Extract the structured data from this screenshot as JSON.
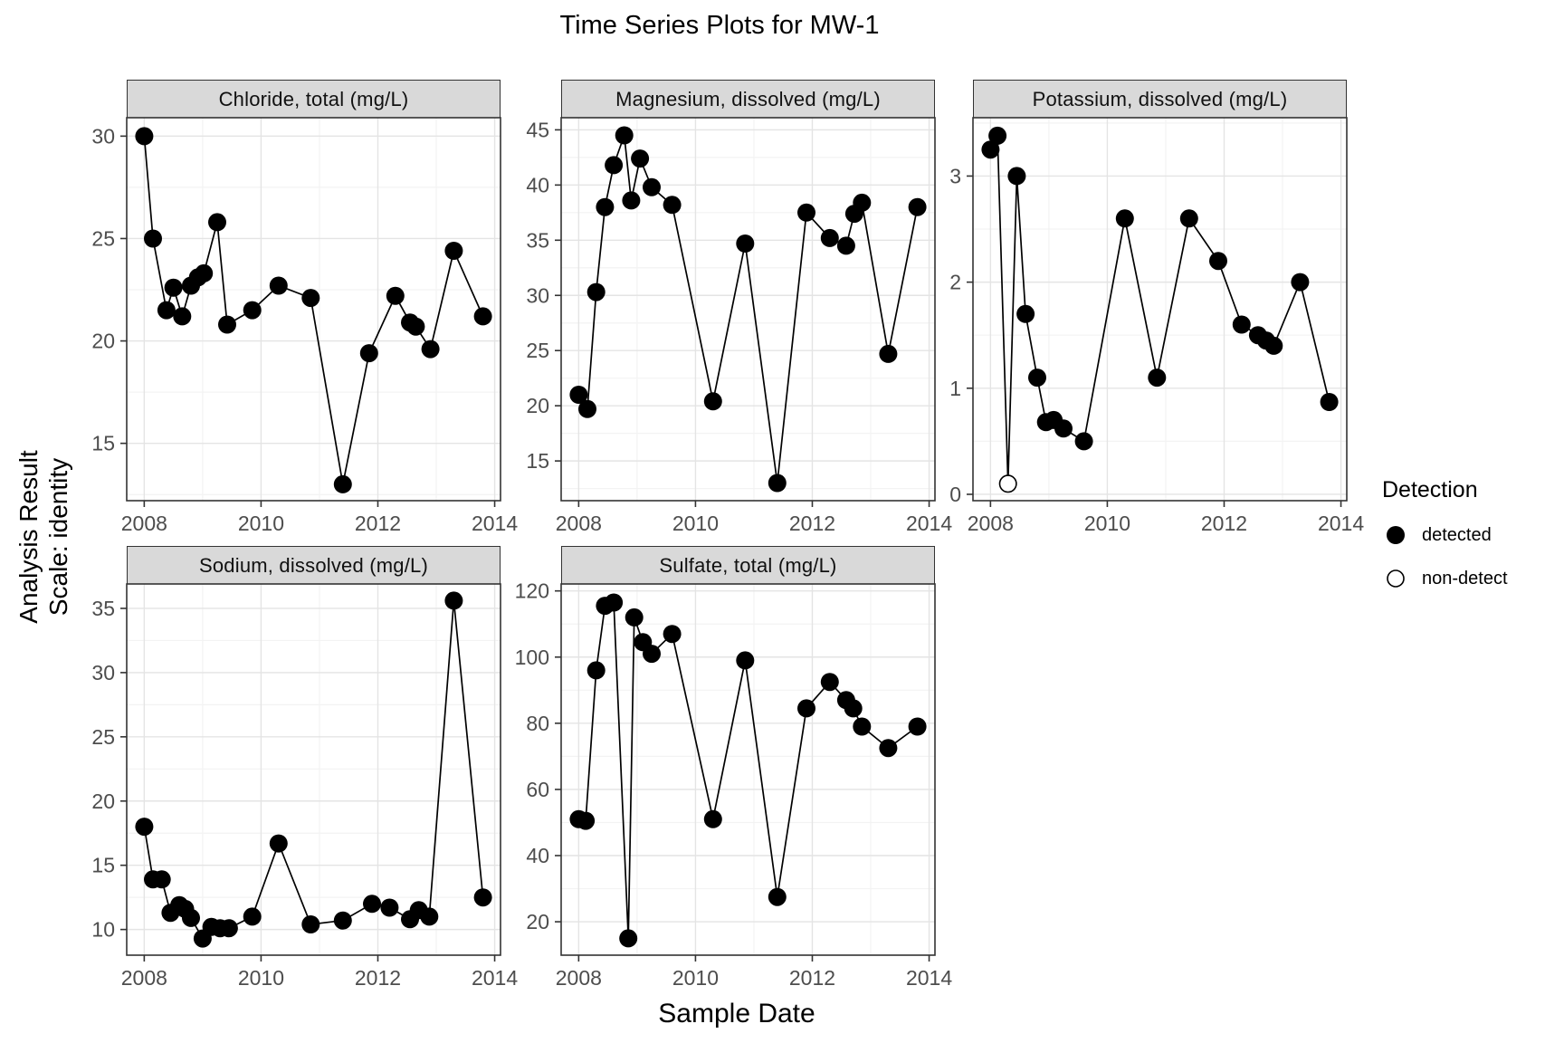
{
  "title": "Time Series Plots for MW-1",
  "y_axis": {
    "line1": "Analysis Result",
    "line2": "Scale: identity"
  },
  "x_axis": {
    "title": "Sample Date"
  },
  "legend": {
    "title": "Detection",
    "items": [
      {
        "label": "detected",
        "symbol": "filled-circle"
      },
      {
        "label": "non-detect",
        "symbol": "open-circle"
      }
    ]
  },
  "colors": {
    "point": "#000000",
    "line": "#000000",
    "strip_bg": "#D9D9D9",
    "panel_bg": "#FFFFFF",
    "panel_border": "#333333",
    "grid_major": "#E4E4E4",
    "grid_minor": "#F3F3F3",
    "tick_label": "#4D4D4D"
  },
  "chart_data": [
    {
      "type": "line",
      "title": "Chloride, total (mg/L)",
      "x": [
        2008.0,
        2008.15,
        2008.38,
        2008.5,
        2008.65,
        2008.8,
        2008.92,
        2009.02,
        2009.25,
        2009.42,
        2009.85,
        2010.3,
        2010.85,
        2011.4,
        2011.85,
        2012.3,
        2012.55,
        2012.65,
        2012.9,
        2013.3,
        2013.8
      ],
      "y": [
        30.0,
        25.0,
        21.5,
        22.6,
        21.2,
        22.7,
        23.1,
        23.3,
        25.8,
        20.8,
        21.5,
        22.7,
        22.1,
        13.0,
        19.4,
        22.2,
        20.9,
        20.7,
        19.6,
        24.4,
        21.2
      ],
      "detected": [
        true,
        true,
        true,
        true,
        true,
        true,
        true,
        true,
        true,
        true,
        true,
        true,
        true,
        true,
        true,
        true,
        true,
        true,
        true,
        true,
        true
      ],
      "xlim": [
        2007.7,
        2014.1
      ],
      "ylim": [
        12.2,
        30.9
      ],
      "x_ticks": [
        2008,
        2010,
        2012,
        2014
      ],
      "y_ticks": [
        15,
        20,
        25,
        30
      ]
    },
    {
      "type": "line",
      "title": "Magnesium, dissolved (mg/L)",
      "x": [
        2008.0,
        2008.15,
        2008.3,
        2008.45,
        2008.6,
        2008.78,
        2008.9,
        2009.05,
        2009.25,
        2009.6,
        2010.3,
        2010.85,
        2011.4,
        2011.9,
        2012.3,
        2012.58,
        2012.72,
        2012.85,
        2013.3,
        2013.8
      ],
      "y": [
        21.0,
        19.7,
        30.3,
        38.0,
        41.8,
        44.5,
        38.6,
        42.4,
        39.8,
        38.2,
        20.4,
        34.7,
        13.0,
        37.5,
        35.2,
        34.5,
        37.4,
        38.4,
        24.7,
        38.0
      ],
      "detected": [
        true,
        true,
        true,
        true,
        true,
        true,
        true,
        true,
        true,
        true,
        true,
        true,
        true,
        true,
        true,
        true,
        true,
        true,
        true,
        true
      ],
      "xlim": [
        2007.7,
        2014.1
      ],
      "ylim": [
        11.4,
        46.1
      ],
      "x_ticks": [
        2008,
        2010,
        2012,
        2014
      ],
      "y_ticks": [
        15,
        20,
        25,
        30,
        35,
        40,
        45
      ]
    },
    {
      "type": "line",
      "title": "Potassium, dissolved (mg/L)",
      "x": [
        2008.0,
        2008.12,
        2008.3,
        2008.45,
        2008.6,
        2008.8,
        2008.95,
        2009.08,
        2009.25,
        2009.6,
        2010.3,
        2010.85,
        2011.4,
        2011.9,
        2012.3,
        2012.58,
        2012.72,
        2012.85,
        2013.3,
        2013.8
      ],
      "y": [
        3.25,
        3.38,
        0.1,
        3.0,
        1.7,
        1.1,
        0.68,
        0.7,
        0.62,
        0.5,
        2.6,
        1.1,
        2.6,
        2.2,
        1.6,
        1.5,
        1.45,
        1.4,
        2.0,
        0.87
      ],
      "detected": [
        true,
        true,
        false,
        true,
        true,
        true,
        true,
        true,
        true,
        true,
        true,
        true,
        true,
        true,
        true,
        true,
        true,
        true,
        true,
        true
      ],
      "xlim": [
        2007.7,
        2014.1
      ],
      "ylim": [
        -0.06,
        3.55
      ],
      "x_ticks": [
        2008,
        2010,
        2012,
        2014
      ],
      "y_ticks": [
        0,
        1,
        2,
        3
      ]
    },
    {
      "type": "line",
      "title": "Sodium, dissolved (mg/L)",
      "x": [
        2008.0,
        2008.15,
        2008.3,
        2008.45,
        2008.6,
        2008.7,
        2008.8,
        2009.0,
        2009.15,
        2009.3,
        2009.45,
        2009.85,
        2010.3,
        2010.85,
        2011.4,
        2011.9,
        2012.2,
        2012.55,
        2012.7,
        2012.88,
        2013.3,
        2013.8
      ],
      "y": [
        18.0,
        13.9,
        13.9,
        11.3,
        11.9,
        11.6,
        10.9,
        9.3,
        10.2,
        10.1,
        10.1,
        11.0,
        16.7,
        10.4,
        10.7,
        12.0,
        11.7,
        10.8,
        11.5,
        11.0,
        35.6,
        12.5
      ],
      "detected": [
        true,
        true,
        true,
        true,
        true,
        true,
        true,
        true,
        true,
        true,
        true,
        true,
        true,
        true,
        true,
        true,
        true,
        true,
        true,
        true,
        true,
        true
      ],
      "xlim": [
        2007.7,
        2014.1
      ],
      "ylim": [
        8.0,
        36.9
      ],
      "x_ticks": [
        2008,
        2010,
        2012,
        2014
      ],
      "y_ticks": [
        10,
        15,
        20,
        25,
        30,
        35
      ]
    },
    {
      "type": "line",
      "title": "Sulfate, total (mg/L)",
      "x": [
        2008.0,
        2008.12,
        2008.3,
        2008.45,
        2008.6,
        2008.85,
        2008.95,
        2009.1,
        2009.25,
        2009.6,
        2010.3,
        2010.85,
        2011.4,
        2011.9,
        2012.3,
        2012.58,
        2012.7,
        2012.85,
        2013.3,
        2013.8
      ],
      "y": [
        51.0,
        50.5,
        96.0,
        115.5,
        116.5,
        15.0,
        112.0,
        104.5,
        101.0,
        107.0,
        51.0,
        99.0,
        27.5,
        84.5,
        92.5,
        87.0,
        84.5,
        79.0,
        72.5,
        79.0
      ],
      "detected": [
        true,
        true,
        true,
        true,
        true,
        true,
        true,
        true,
        true,
        true,
        true,
        true,
        true,
        true,
        true,
        true,
        true,
        true,
        true,
        true
      ],
      "xlim": [
        2007.7,
        2014.1
      ],
      "ylim": [
        9.9,
        122.1
      ],
      "x_ticks": [
        2008,
        2010,
        2012,
        2014
      ],
      "y_ticks": [
        20,
        40,
        60,
        80,
        100,
        120
      ]
    }
  ]
}
